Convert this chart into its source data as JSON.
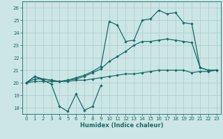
{
  "xlabel": "Humidex (Indice chaleur)",
  "xlim": [
    -0.5,
    23.5
  ],
  "ylim": [
    17.5,
    26.5
  ],
  "yticks": [
    18,
    19,
    20,
    21,
    22,
    23,
    24,
    25,
    26
  ],
  "xticks": [
    0,
    1,
    2,
    3,
    4,
    5,
    6,
    7,
    8,
    9,
    10,
    11,
    12,
    13,
    14,
    15,
    16,
    17,
    18,
    19,
    20,
    21,
    22,
    23
  ],
  "background_color": "#cce5e5",
  "grid_color": "#aacccc",
  "line_color": "#1a6b6b",
  "line1_x": [
    0,
    1,
    2,
    3,
    4,
    5,
    6,
    7,
    8,
    9
  ],
  "line1_y": [
    20.0,
    20.5,
    20.2,
    19.9,
    18.1,
    17.7,
    19.1,
    17.8,
    18.1,
    19.8
  ],
  "line2_x": [
    0,
    1,
    2,
    3,
    4,
    5,
    6,
    7,
    8,
    9,
    10,
    11,
    12,
    13,
    14,
    15,
    16,
    17,
    18,
    19,
    20,
    21,
    22,
    23
  ],
  "line2_y": [
    20.0,
    20.1,
    20.1,
    20.1,
    20.1,
    20.1,
    20.2,
    20.2,
    20.3,
    20.4,
    20.5,
    20.6,
    20.7,
    20.7,
    20.8,
    20.9,
    21.0,
    21.0,
    21.0,
    21.0,
    20.8,
    20.9,
    20.9,
    21.0
  ],
  "line3_x": [
    0,
    1,
    2,
    3,
    4,
    5,
    6,
    7,
    8,
    9,
    10,
    11,
    12,
    13,
    14,
    15,
    16,
    17,
    18,
    19,
    20,
    21,
    22,
    23
  ],
  "line3_y": [
    20.0,
    20.3,
    20.3,
    20.2,
    20.1,
    20.2,
    20.3,
    20.5,
    20.8,
    21.1,
    21.7,
    22.1,
    22.5,
    23.0,
    23.3,
    23.3,
    23.4,
    23.5,
    23.4,
    23.3,
    23.2,
    21.2,
    21.0,
    21.0
  ],
  "line4_x": [
    0,
    1,
    2,
    3,
    4,
    5,
    6,
    7,
    8,
    9,
    10,
    11,
    12,
    13,
    14,
    15,
    16,
    17,
    18,
    19,
    20,
    21,
    22,
    23
  ],
  "line4_y": [
    20.0,
    20.5,
    20.3,
    20.2,
    20.1,
    20.2,
    20.4,
    20.6,
    20.9,
    21.3,
    24.9,
    24.6,
    23.3,
    23.4,
    25.0,
    25.1,
    25.8,
    25.5,
    25.6,
    24.8,
    24.7,
    21.2,
    21.0,
    21.0
  ]
}
